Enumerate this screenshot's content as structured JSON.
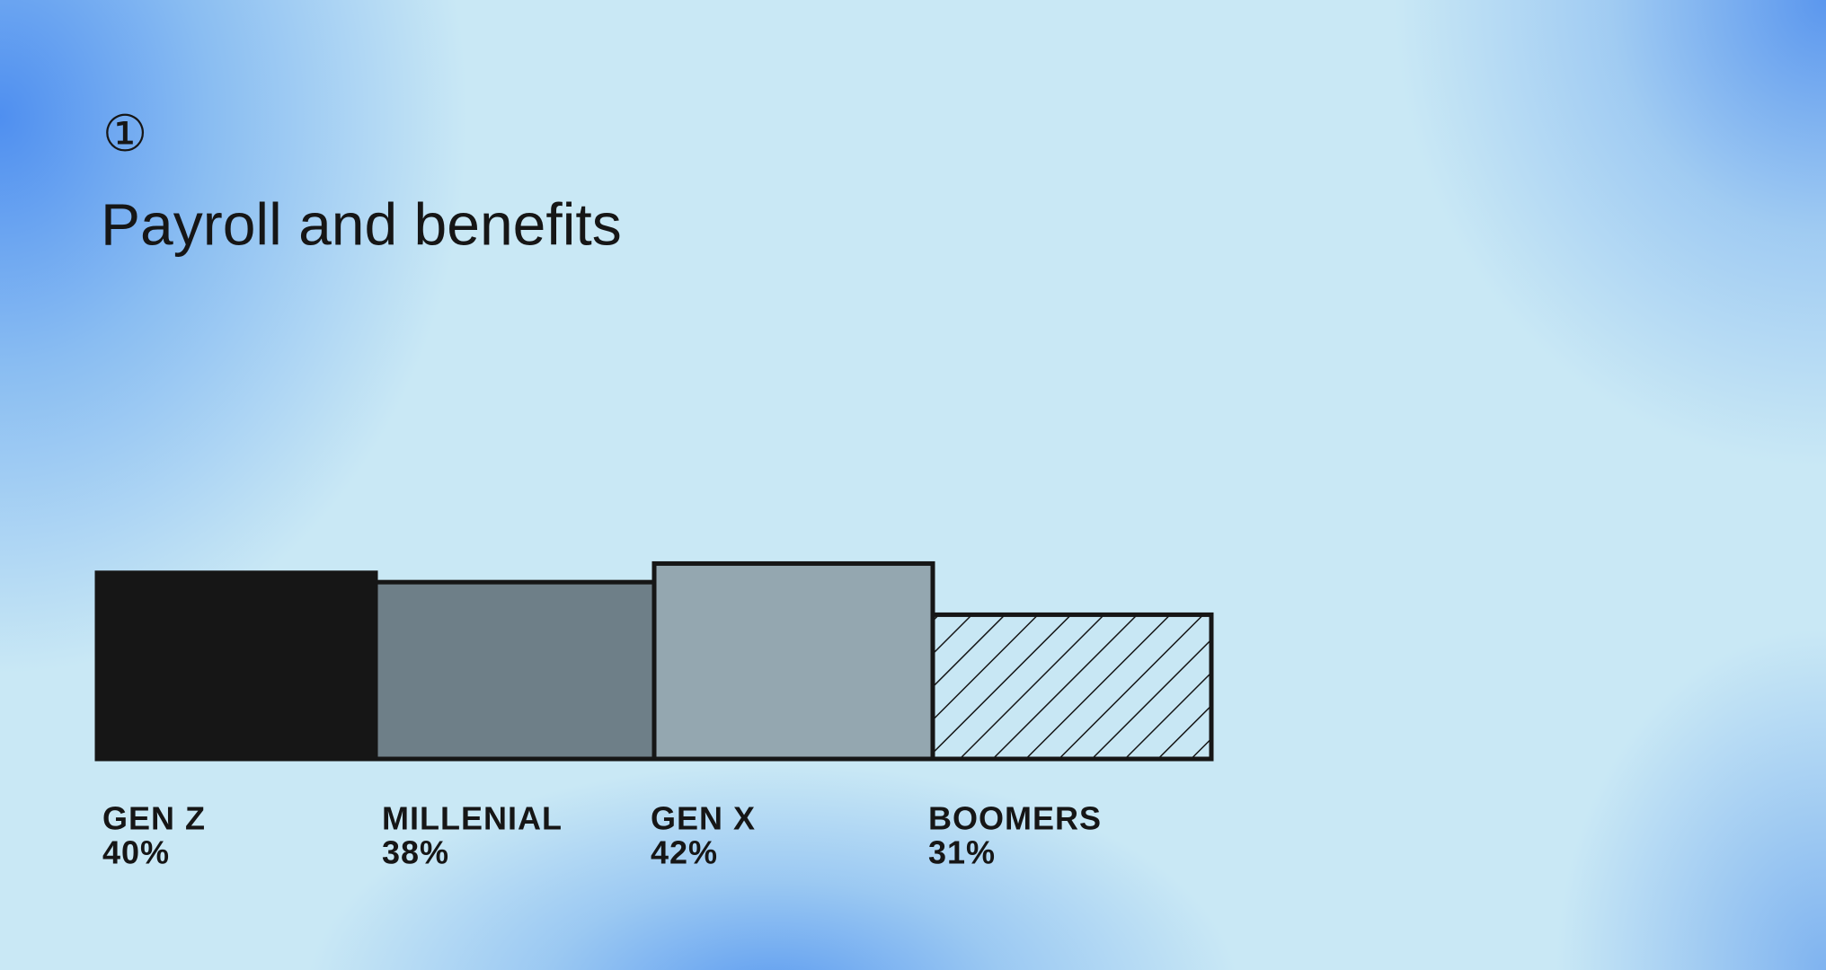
{
  "chart_data": {
    "type": "bar",
    "marker": "①",
    "title": "Payroll and benefits",
    "categories": [
      "GEN Z",
      "MILLENIAL",
      "GEN X",
      "BOOMERS"
    ],
    "values": [
      40,
      38,
      42,
      31
    ],
    "value_labels": [
      "40%",
      "38%",
      "42%",
      "31%"
    ],
    "colors": [
      "#161616",
      "#6e7f88",
      "#94a7b0",
      "#c8e7f4"
    ],
    "bar_styles": [
      "solid",
      "solid",
      "solid",
      "hatched"
    ]
  }
}
